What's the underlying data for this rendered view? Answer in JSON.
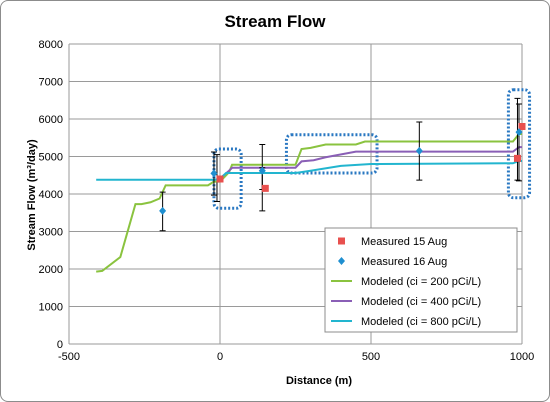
{
  "chart_data": {
    "type": "line",
    "title": "Stream Flow",
    "xlabel": "Distance (m)",
    "ylabel": "Stream Flow (m³/day)",
    "xlim": [
      -500,
      1000
    ],
    "ylim": [
      0,
      8000
    ],
    "xticks": [
      -500,
      0,
      500,
      1000
    ],
    "yticks": [
      0,
      1000,
      2000,
      3000,
      4000,
      5000,
      6000,
      7000,
      8000
    ],
    "grid": "major x and y",
    "legend_position": "lower-right",
    "colors": {
      "measured_15": "#e8504e",
      "measured_16": "#1f8fd0",
      "mod200": "#8ac33f",
      "mod400": "#8a5fb6",
      "mod800": "#22b5cf",
      "highlight_box": "#2a78c2"
    },
    "series": [
      {
        "name": "Measured 15 Aug",
        "kind": "marker-square",
        "points": [
          [
            0,
            4400
          ],
          [
            150,
            4150
          ],
          [
            985,
            4950
          ],
          [
            1000,
            5800
          ]
        ],
        "errors": [
          [
            -10,
            3800,
            5050
          ],
          [
            140,
            3550,
            4700
          ],
          [
            990,
            4350,
            6400
          ]
        ]
      },
      {
        "name": "Measured 16 Aug",
        "kind": "marker-diamond",
        "points": [
          [
            -190,
            3550
          ],
          [
            -20,
            4550
          ],
          [
            140,
            4620
          ],
          [
            660,
            5150
          ],
          [
            990,
            5650
          ]
        ],
        "errors": [
          [
            -190,
            3020,
            4050
          ],
          [
            -20,
            3970,
            5120
          ],
          [
            140,
            4120,
            5320
          ],
          [
            660,
            4370,
            5920
          ],
          [
            985,
            4370,
            6550
          ]
        ]
      },
      {
        "name": "Modeled (ci = 200 pCi/L)",
        "kind": "line",
        "points": [
          [
            -410,
            1930
          ],
          [
            -390,
            1950
          ],
          [
            -330,
            2320
          ],
          [
            -280,
            3730
          ],
          [
            -260,
            3730
          ],
          [
            -230,
            3780
          ],
          [
            -200,
            3880
          ],
          [
            -180,
            4230
          ],
          [
            -40,
            4230
          ],
          [
            -20,
            4330
          ],
          [
            0,
            4330
          ],
          [
            30,
            4580
          ],
          [
            40,
            4780
          ],
          [
            250,
            4780
          ],
          [
            270,
            5200
          ],
          [
            300,
            5230
          ],
          [
            350,
            5320
          ],
          [
            450,
            5320
          ],
          [
            480,
            5400
          ],
          [
            970,
            5400
          ],
          [
            990,
            5600
          ],
          [
            1000,
            5600
          ]
        ]
      },
      {
        "name": "Modeled (ci = 400 pCi/L)",
        "kind": "line",
        "points": [
          [
            -10,
            4350
          ],
          [
            30,
            4620
          ],
          [
            40,
            4700
          ],
          [
            250,
            4700
          ],
          [
            270,
            4870
          ],
          [
            310,
            4900
          ],
          [
            350,
            4980
          ],
          [
            450,
            5130
          ],
          [
            970,
            5130
          ],
          [
            990,
            5250
          ],
          [
            1000,
            5250
          ]
        ]
      },
      {
        "name": "Modeled (ci = 800 pCi/L)",
        "kind": "line",
        "points": [
          [
            -410,
            4380
          ],
          [
            -20,
            4380
          ],
          [
            0,
            4400
          ],
          [
            20,
            4560
          ],
          [
            250,
            4560
          ],
          [
            300,
            4620
          ],
          [
            400,
            4750
          ],
          [
            500,
            4800
          ],
          [
            970,
            4820
          ],
          [
            990,
            4880
          ],
          [
            1000,
            4880
          ]
        ]
      }
    ],
    "highlight_boxes": [
      {
        "x0": -20,
        "x1": 70,
        "y0": 3620,
        "y1": 5200
      },
      {
        "x0": 220,
        "x1": 520,
        "y0": 4560,
        "y1": 5580
      },
      {
        "x0": 955,
        "x1": 1025,
        "y0": 3900,
        "y1": 6780
      }
    ]
  }
}
